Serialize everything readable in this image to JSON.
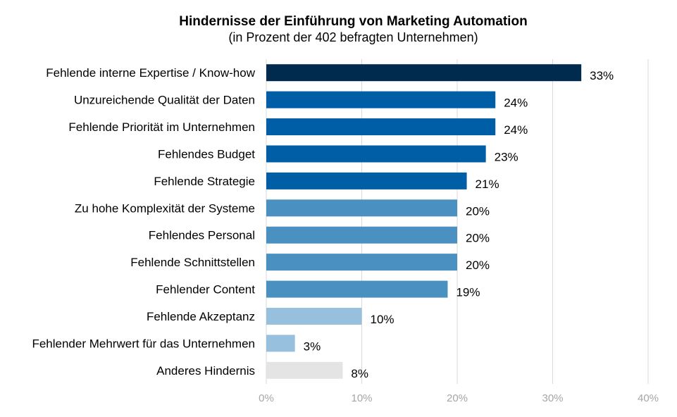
{
  "chart_data": {
    "type": "bar",
    "orientation": "horizontal",
    "title": "Hindernisse der Einführung von Marketing Automation",
    "subtitle": "(in Prozent der 402 befragten Unternehmen)",
    "categories": [
      "Fehlende interne Expertise / Know-how",
      "Unzureichende Qualität der Daten",
      "Fehlende Priorität im Unternehmen",
      "Fehlendes Budget",
      "Fehlende Strategie",
      "Zu hohe Komplexität der Systeme",
      "Fehlendes Personal",
      "Fehlende Schnittstellen",
      "Fehlender Content",
      "Fehlende Akzeptanz",
      "Fehlender Mehrwert für das Unternehmen",
      "Anderes Hindernis"
    ],
    "values": [
      33,
      24,
      24,
      23,
      21,
      20,
      20,
      20,
      19,
      10,
      3,
      8
    ],
    "value_labels": [
      "33%",
      "24%",
      "24%",
      "23%",
      "21%",
      "20%",
      "20%",
      "20%",
      "19%",
      "10%",
      "3%",
      "8%"
    ],
    "bar_colors": [
      "#002b4e",
      "#005ea6",
      "#005ea6",
      "#005ea6",
      "#005ea6",
      "#4a90c0",
      "#4a90c0",
      "#4a90c0",
      "#4a90c0",
      "#96c0de",
      "#96c0de",
      "#e4e4e4"
    ],
    "xlim": [
      0,
      40
    ],
    "xticks": [
      0,
      10,
      20,
      30,
      40
    ],
    "xtick_labels": [
      "0%",
      "10%",
      "20%",
      "30%",
      "40%"
    ],
    "grid": true,
    "legend": "none"
  }
}
